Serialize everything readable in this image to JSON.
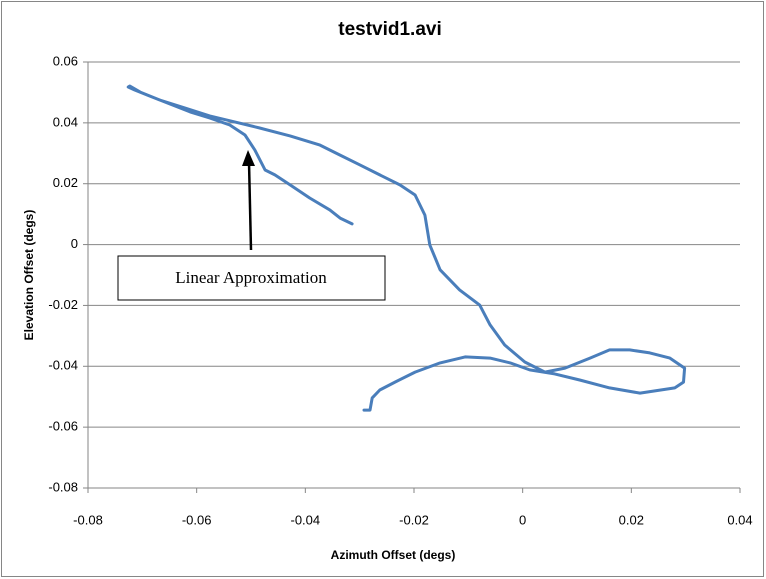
{
  "chart_data": {
    "type": "line",
    "title": "testvid1.avi",
    "x_label": "Azimuth Offset (degs)",
    "y_label": "Elevation Offset (degs)",
    "xlim": [
      -0.08,
      0.04
    ],
    "xticks": [
      -0.08,
      -0.06,
      -0.04,
      -0.02,
      0,
      0.02,
      0.04
    ],
    "ylim": [
      -0.08,
      0.06
    ],
    "yticks": [
      -0.08,
      -0.06,
      -0.04,
      -0.02,
      0,
      0.02,
      0.04,
      0.06
    ],
    "grid": true,
    "x": [
      -0.0314,
      -0.0336,
      -0.0355,
      -0.0392,
      -0.0428,
      -0.0456,
      -0.0474,
      -0.0493,
      -0.0511,
      -0.0539,
      -0.0576,
      -0.0612,
      -0.0649,
      -0.0686,
      -0.0714,
      -0.0726,
      -0.0723,
      -0.0704,
      -0.0668,
      -0.0622,
      -0.0576,
      -0.053,
      -0.0484,
      -0.0428,
      -0.0373,
      -0.0336,
      -0.03,
      -0.0263,
      -0.0226,
      -0.0198,
      -0.018,
      -0.0171,
      -0.0152,
      -0.0116,
      -0.0079,
      -0.006,
      -0.0033,
      0.0004,
      0.0041,
      0.0078,
      0.0124,
      0.016,
      0.0197,
      0.0234,
      0.0271,
      0.0298,
      0.0296,
      0.028,
      0.0216,
      0.016,
      0.0105,
      0.0059,
      0.0013,
      -0.0023,
      -0.006,
      -0.0106,
      -0.0152,
      -0.0198,
      -0.0235,
      -0.0263,
      -0.0277,
      -0.0281,
      -0.0292
    ],
    "series": [
      {
        "color": "#4a7ebb",
        "values": [
          0.0068,
          0.0087,
          0.0114,
          0.0153,
          0.0196,
          0.0229,
          0.0245,
          0.0311,
          0.036,
          0.0393,
          0.0416,
          0.0436,
          0.0462,
          0.0488,
          0.0508,
          0.0518,
          0.0521,
          0.0501,
          0.0475,
          0.0449,
          0.0423,
          0.0403,
          0.0383,
          0.0357,
          0.0327,
          0.0294,
          0.0262,
          0.0229,
          0.0196,
          0.0163,
          0.0097,
          -0.0001,
          -0.0083,
          -0.0149,
          -0.0199,
          -0.0264,
          -0.033,
          -0.0386,
          -0.0419,
          -0.0406,
          -0.0373,
          -0.0346,
          -0.0346,
          -0.0356,
          -0.0373,
          -0.0406,
          -0.0452,
          -0.0471,
          -0.0488,
          -0.0471,
          -0.0445,
          -0.0425,
          -0.0412,
          -0.0389,
          -0.0373,
          -0.0369,
          -0.0389,
          -0.0419,
          -0.0452,
          -0.0478,
          -0.0504,
          -0.0544,
          -0.0544
        ]
      }
    ],
    "annotations": [
      {
        "text": "Linear Approximation"
      }
    ]
  }
}
